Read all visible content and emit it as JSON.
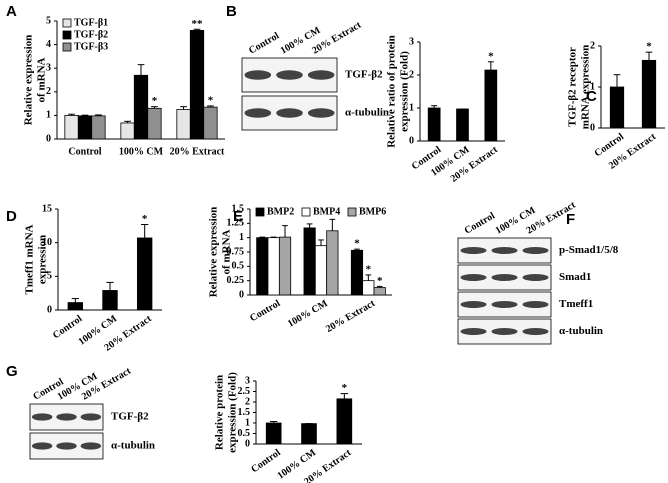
{
  "chart_data": [
    {
      "panel": "A",
      "type": "bar",
      "ylabel": [
        "Relative expression",
        "of mRNA"
      ],
      "categories": [
        "Control",
        "100% CM",
        "20% Extract"
      ],
      "series": [
        {
          "name": "TGF-β1",
          "color": "#e6e6e6",
          "values": [
            1.0,
            0.68,
            1.25
          ],
          "errors": [
            0.05,
            0.07,
            0.12
          ]
        },
        {
          "name": "TGF-β2",
          "color": "#000000",
          "values": [
            0.98,
            2.7,
            4.6
          ],
          "errors": [
            0.03,
            0.45,
            0.05
          ]
        },
        {
          "name": "TGF-β3",
          "color": "#909090",
          "values": [
            0.98,
            1.3,
            1.35
          ],
          "errors": [
            0.04,
            0.07,
            0.05
          ]
        }
      ],
      "ylim": [
        0,
        5
      ],
      "yticks": [
        0,
        1,
        2,
        3,
        4,
        5
      ],
      "legend": "upper left",
      "annotations": [
        {
          "text": "*",
          "category": "100% CM",
          "series": "TGF-β3"
        },
        {
          "text": "**",
          "category": "20% Extract",
          "series": "TGF-β2"
        },
        {
          "text": "*",
          "category": "20% Extract",
          "series": "TGF-β3"
        }
      ]
    },
    {
      "type": "bar",
      "ylabel": [
        "Relative ratio of protein",
        "expression (Fold)"
      ],
      "categories": [
        "Control",
        "100% CM",
        "20% Extract"
      ],
      "values": [
        1.0,
        0.97,
        2.15
      ],
      "errors": [
        0.07,
        0,
        0.25
      ],
      "color": "#000000",
      "ylim": [
        0,
        3
      ],
      "yticks": [
        0,
        1,
        2,
        3
      ],
      "annotations": [
        {
          "text": "*",
          "category": "20% Extract"
        }
      ]
    },
    {
      "panel": "C",
      "type": "bar",
      "ylabel": [
        "TGF-β2 receptor",
        "mRNA expression"
      ],
      "categories": [
        "Control",
        "20% Extract"
      ],
      "values": [
        1.0,
        1.65
      ],
      "errors": [
        0.3,
        0.2
      ],
      "color": "#000000",
      "ylim": [
        0,
        2
      ],
      "yticks": [
        0,
        1,
        2
      ],
      "annotations": [
        {
          "text": "*",
          "category": "20% Extract"
        }
      ]
    },
    {
      "panel": "D",
      "type": "bar",
      "ylabel": [
        "Tmeff1 mRNA",
        "expression"
      ],
      "categories": [
        "Control",
        "100% CM",
        "20% Extract"
      ],
      "values": [
        1.1,
        2.9,
        10.7
      ],
      "errors": [
        0.6,
        1.2,
        2.0
      ],
      "color": "#000000",
      "ylim": [
        0,
        15
      ],
      "yticks": [
        0,
        5,
        10,
        15
      ],
      "annotations": [
        {
          "text": "*",
          "category": "20% Extract"
        }
      ]
    },
    {
      "panel": "E",
      "type": "bar",
      "ylabel": [
        "Relative expression",
        "of mRNA"
      ],
      "categories": [
        "Control",
        "100% CM",
        "20% Extract"
      ],
      "series": [
        {
          "name": "BMP2",
          "color": "#000000",
          "values": [
            1.0,
            1.17,
            0.78
          ],
          "errors": [
            0.01,
            0.07,
            0.02
          ]
        },
        {
          "name": "BMP4",
          "color": "#ffffff",
          "values": [
            1.0,
            0.86,
            0.25
          ],
          "errors": [
            0.01,
            0.1,
            0.1
          ]
        },
        {
          "name": "BMP6",
          "color": "#a6a6a6",
          "values": [
            1.01,
            1.12,
            0.13
          ],
          "errors": [
            0.2,
            0.2,
            0.02
          ]
        }
      ],
      "ylim": [
        0,
        1.5
      ],
      "yticks": [
        0,
        0.25,
        0.5,
        0.75,
        1,
        1.25,
        1.5
      ],
      "legend": "top",
      "annotations": [
        {
          "text": "*",
          "category": "20% Extract",
          "series": "BMP2"
        },
        {
          "text": "*",
          "category": "20% Extract",
          "series": "BMP4"
        },
        {
          "text": "*",
          "category": "20% Extract",
          "series": "BMP6"
        }
      ]
    },
    {
      "type": "bar",
      "ylabel": [
        "Relative protein",
        "expression (Fold)"
      ],
      "categories": [
        "Control",
        "100% CM",
        "20% Extract"
      ],
      "values": [
        1.0,
        0.97,
        2.15
      ],
      "errors": [
        0.07,
        0,
        0.25
      ],
      "color": "#000000",
      "ylim": [
        0,
        3
      ],
      "yticks": [
        0,
        0.5,
        1,
        1.5,
        2,
        2.5,
        3
      ],
      "annotations": [
        {
          "text": "*",
          "category": "20% Extract"
        }
      ]
    }
  ],
  "blots": [
    {
      "panel": "B",
      "lanes": [
        "Control",
        "100% CM",
        "20% Extract"
      ],
      "rows": [
        "TGF-β2",
        "α-tubulin"
      ]
    },
    {
      "panel": "F",
      "lanes": [
        "Control",
        "100% CM",
        "20% Extract"
      ],
      "rows": [
        "p-Smad1/5/8",
        "Smad1",
        "Tmeff1",
        "α-tubulin"
      ]
    },
    {
      "panel": "G",
      "lanes": [
        "Control",
        "100% CM",
        "20% Extract"
      ],
      "rows": [
        "TGF-β2",
        "α-tubulin"
      ]
    }
  ]
}
